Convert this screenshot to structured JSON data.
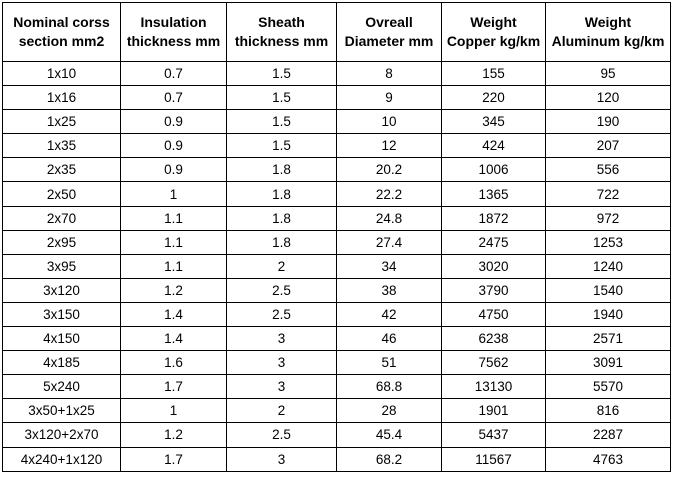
{
  "table": {
    "header": [
      [
        "Nominal corss",
        "section mm2"
      ],
      [
        "Insulation",
        "thickness mm"
      ],
      [
        "Sheath",
        "thickness mm"
      ],
      [
        "Ovreall",
        "Diameter mm"
      ],
      [
        "Weight",
        "Copper kg/km"
      ],
      [
        "Weight",
        "Aluminum kg/km"
      ]
    ],
    "rows": [
      [
        "1x10",
        0.7,
        1.5,
        8,
        155,
        95
      ],
      [
        "1x16",
        0.7,
        1.5,
        9,
        220,
        120
      ],
      [
        "1x25",
        0.9,
        1.5,
        10,
        345,
        190
      ],
      [
        "1x35",
        0.9,
        1.5,
        12,
        424,
        207
      ],
      [
        "2x35",
        0.9,
        1.8,
        20.2,
        1006,
        556
      ],
      [
        "2x50",
        1,
        1.8,
        22.2,
        1365,
        722
      ],
      [
        "2x70",
        1.1,
        1.8,
        24.8,
        1872,
        972
      ],
      [
        "2x95",
        1.1,
        1.8,
        27.4,
        2475,
        1253
      ],
      [
        "3x95",
        1.1,
        2,
        34,
        3020,
        1240
      ],
      [
        "3x120",
        1.2,
        2.5,
        38,
        3790,
        1540
      ],
      [
        "3x150",
        1.4,
        2.5,
        42,
        4750,
        1940
      ],
      [
        "4x150",
        1.4,
        3,
        46,
        6238,
        2571
      ],
      [
        "4x185",
        1.6,
        3,
        51,
        7562,
        3091
      ],
      [
        "5x240",
        1.7,
        3,
        68.8,
        13130,
        5570
      ],
      [
        "3x50+1x25",
        1,
        2,
        28,
        1901,
        816
      ],
      [
        "3x120+2x70",
        1.2,
        2.5,
        45.4,
        5437,
        2287
      ],
      [
        "4x240+1x120",
        1.7,
        3,
        68.2,
        11567,
        4763
      ]
    ]
  }
}
